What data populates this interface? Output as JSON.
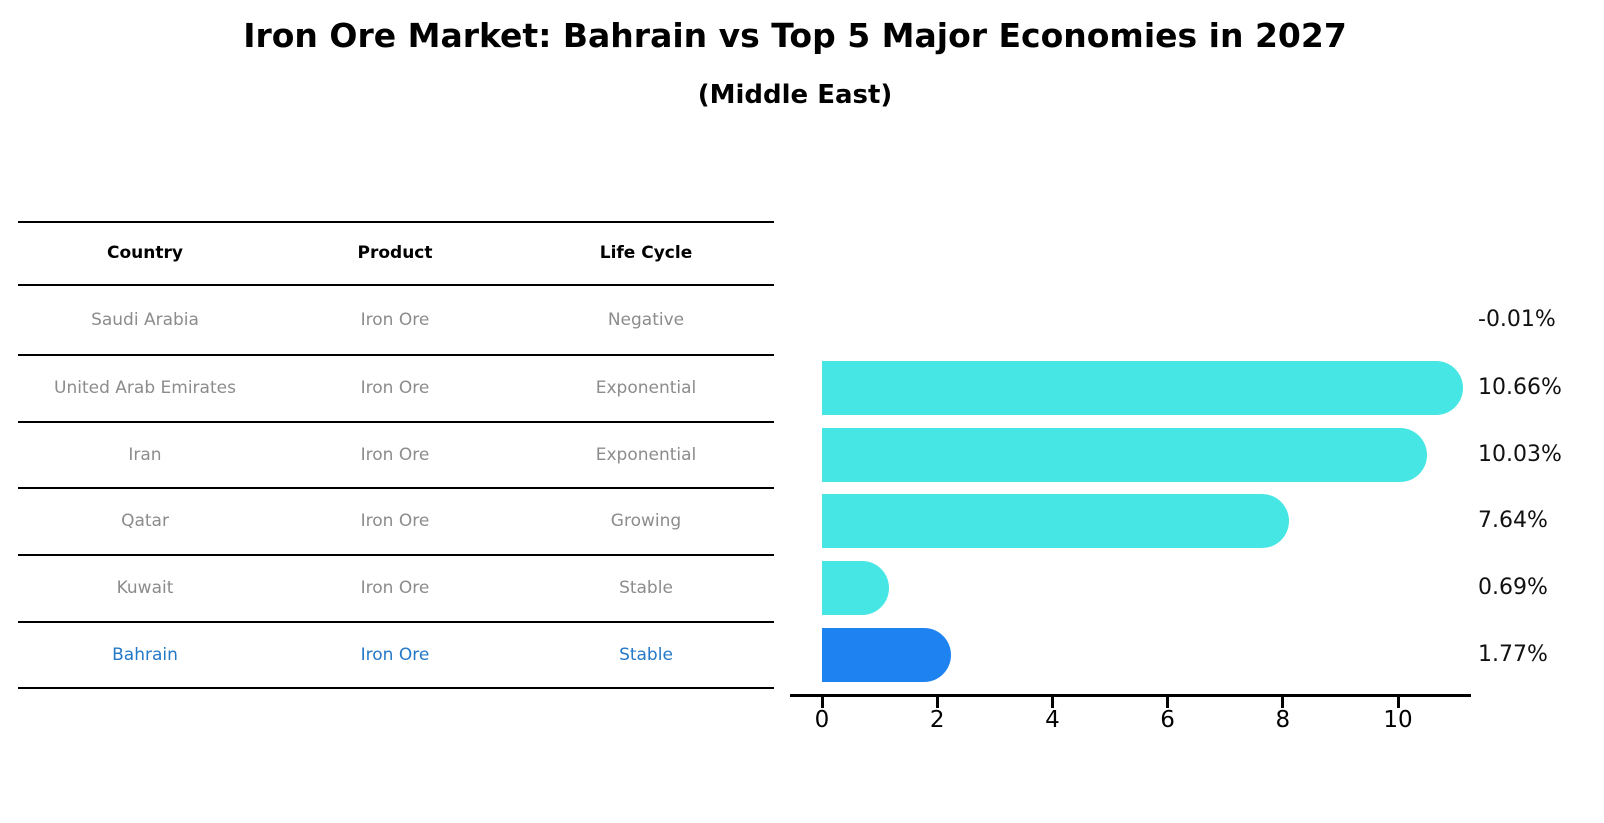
{
  "title": "Iron Ore Market: Bahrain vs Top 5 Major Economies in 2027",
  "subtitle": "(Middle East)",
  "table": {
    "columns": [
      "Country",
      "Product",
      "Life Cycle"
    ],
    "rows": [
      {
        "country": "Saudi Arabia",
        "product": "Iron Ore",
        "life_cycle": "Negative"
      },
      {
        "country": "United Arab Emirates",
        "product": "Iron Ore",
        "life_cycle": "Exponential"
      },
      {
        "country": "Iran",
        "product": "Iron Ore",
        "life_cycle": "Exponential"
      },
      {
        "country": "Qatar",
        "product": "Iron Ore",
        "life_cycle": "Growing"
      },
      {
        "country": "Kuwait",
        "product": "Iron Ore",
        "life_cycle": "Stable"
      },
      {
        "country": "Bahrain",
        "product": "Iron Ore",
        "life_cycle": "Stable"
      }
    ],
    "highlighted_row": "Bahrain"
  },
  "chart_data": {
    "type": "bar",
    "orientation": "horizontal",
    "title": "Iron Ore Market: Bahrain vs Top 5 Major Economies in 2027 (Middle East)",
    "categories": [
      "Saudi Arabia",
      "United Arab Emirates",
      "Iran",
      "Qatar",
      "Kuwait",
      "Bahrain"
    ],
    "values": [
      -0.01,
      10.66,
      10.03,
      7.64,
      0.69,
      1.77
    ],
    "value_labels": [
      "-0.01%",
      "10.66%",
      "10.03%",
      "7.64%",
      "0.69%",
      "1.77%"
    ],
    "xlabel": "",
    "ylabel": "",
    "xlim": [
      0,
      11.3
    ],
    "xticks": [
      0,
      2,
      4,
      6,
      8,
      10
    ],
    "grid": false,
    "legend": false,
    "bar_color": "#46e6e4",
    "highlight_color": "#1e82f0",
    "highlight_index": 5
  }
}
